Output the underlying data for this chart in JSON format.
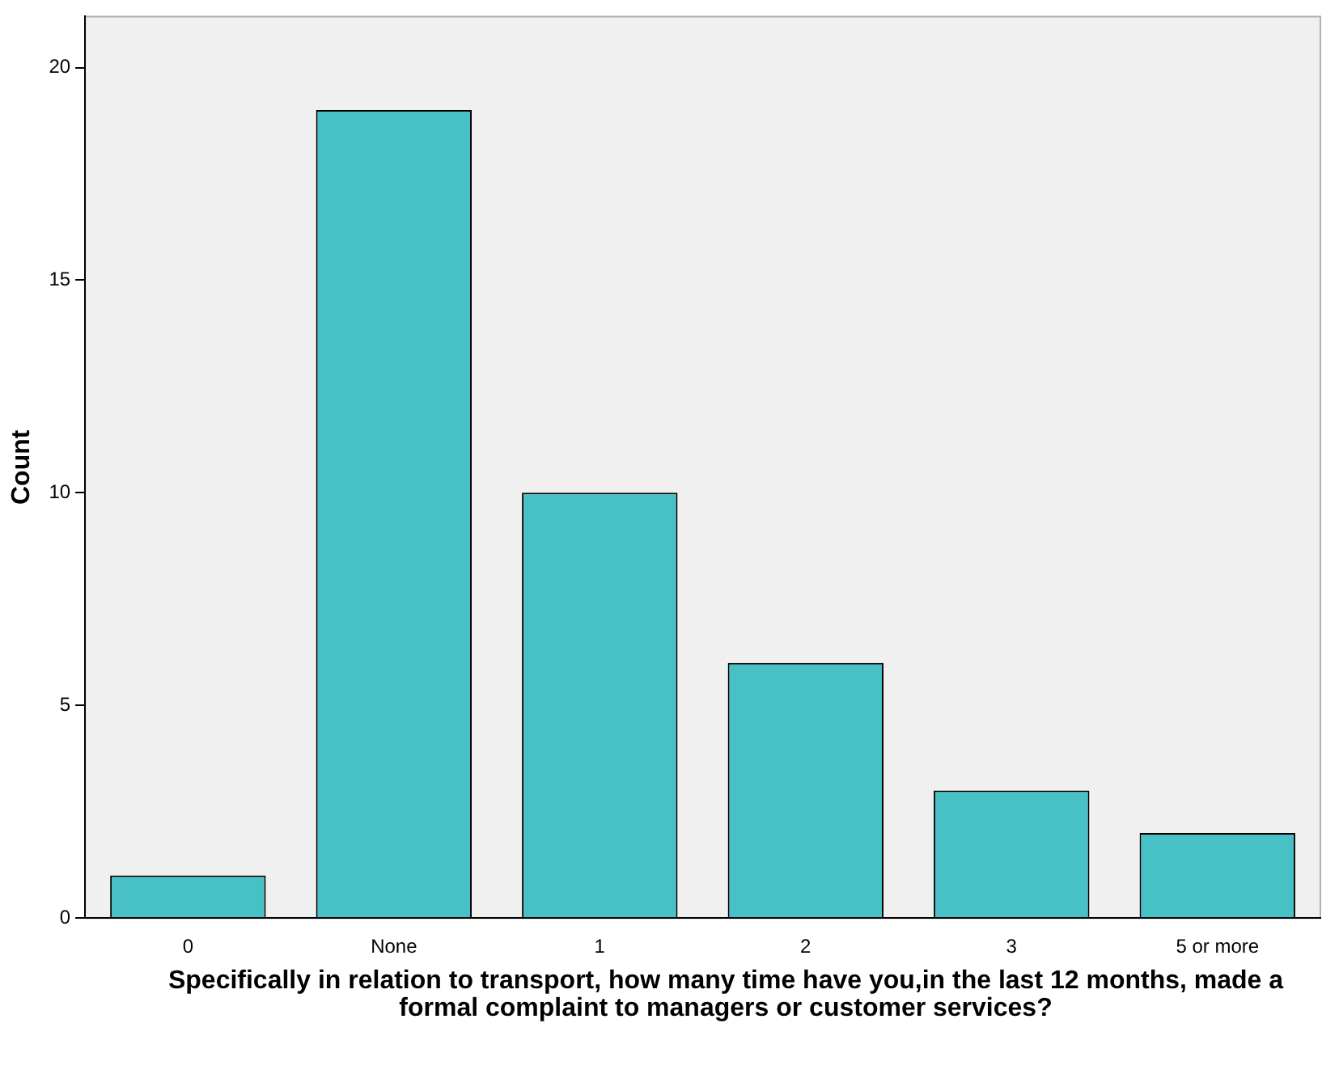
{
  "chart_data": {
    "type": "bar",
    "xlabel": "Specifically in relation to transport, how many time have you,in the last 12 months, made a formal complaint to managers or customer services?",
    "ylabel": "Count",
    "categories": [
      "0",
      "None",
      "1",
      "2",
      "3",
      "5 or more"
    ],
    "values": [
      1,
      19,
      10,
      6,
      3,
      2
    ],
    "color": "#48c1c6",
    "ylim": [
      0,
      21.2
    ],
    "yticks": [
      0,
      5,
      10,
      15,
      20
    ]
  }
}
